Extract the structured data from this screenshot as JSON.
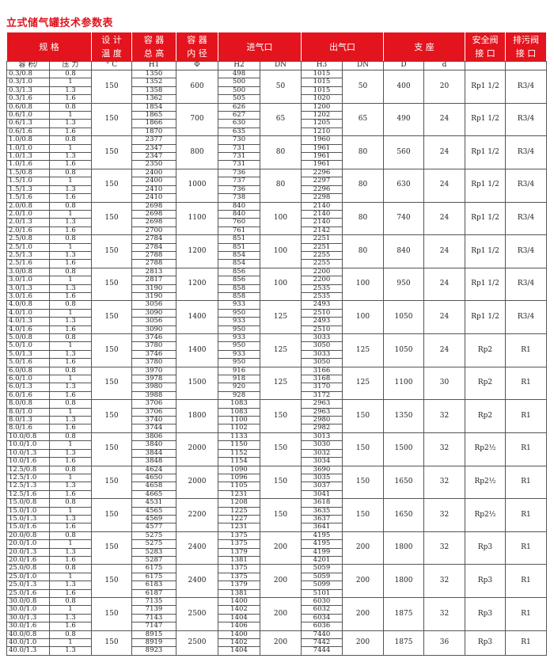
{
  "title": "立式储气罐技术参数表",
  "colors": {
    "header_bg": "#e3141d",
    "title": "#e0141e"
  },
  "headers": {
    "spec": "规 格",
    "temp": "设 计\n温 度",
    "height": "容 器\n总 高",
    "diameter": "容 器\n内 径",
    "inlet": "进气口",
    "outlet": "出气口",
    "support": "支 座",
    "safety": "安全阀\n接 口",
    "drain": "排污阀\n接 口"
  },
  "subheaders": [
    "容 积/",
    "压 力",
    "° C",
    "H1",
    "Φ",
    "H2",
    "DN",
    "H3",
    "DN",
    "D",
    "d",
    "",
    ""
  ],
  "groups": [
    {
      "temp": "150",
      "dia": "600",
      "in_dn": "50",
      "out_dn": "50",
      "D": "400",
      "d": "20",
      "safety": "Rp1 1/2",
      "drain": "R3/4",
      "rows": [
        [
          "0.3/0.8",
          "0.8",
          "1350",
          "498",
          "1015"
        ],
        [
          "0.3/1.0",
          "1",
          "1352",
          "500",
          "1015"
        ],
        [
          "0.3/1.3",
          "1.3",
          "1358",
          "500",
          "1015"
        ],
        [
          "0.3/1.6",
          "1.6",
          "1362",
          "505",
          "1020"
        ]
      ]
    },
    {
      "temp": "150",
      "dia": "700",
      "in_dn": "65",
      "out_dn": "65",
      "D": "490",
      "d": "24",
      "safety": "Rp1 1/2",
      "drain": "R3/4",
      "rows": [
        [
          "0.6/0.8",
          "0.8",
          "1854",
          "626",
          "1200"
        ],
        [
          "0.6/1.0",
          "1",
          "1865",
          "627",
          "1202"
        ],
        [
          "0.6/1.3",
          "1.3",
          "1866",
          "630",
          "1205"
        ],
        [
          "0.6/1.6",
          "1.6",
          "1870",
          "635",
          "1210"
        ]
      ]
    },
    {
      "temp": "150",
      "dia": "800",
      "in_dn": "80",
      "out_dn": "80",
      "D": "560",
      "d": "24",
      "safety": "Rp1 1/2",
      "drain": "R3/4",
      "rows": [
        [
          "1.0/0.8",
          "0.8",
          "2377",
          "730",
          "1960"
        ],
        [
          "1.0/1.0",
          "1",
          "2347",
          "731",
          "1961"
        ],
        [
          "1.0/1.3",
          "1.3",
          "2347",
          "731",
          "1961"
        ],
        [
          "1.0/1.6",
          "1.6",
          "2350",
          "731",
          "1961"
        ]
      ]
    },
    {
      "temp": "150",
      "dia": "1000",
      "in_dn": "80",
      "out_dn": "80",
      "D": "630",
      "d": "24",
      "safety": "Rp1 1/2",
      "drain": "R3/4",
      "rows": [
        [
          "1.5/0.8",
          "0.8",
          "2400",
          "736",
          "2296"
        ],
        [
          "1.5/1.0",
          "1",
          "2400",
          "737",
          "2297"
        ],
        [
          "1.5/1.3",
          "1.3",
          "2410",
          "736",
          "2296"
        ],
        [
          "1.5/1.6",
          "1.6",
          "2410",
          "738",
          "2298"
        ]
      ]
    },
    {
      "temp": "150",
      "dia": "1100",
      "in_dn": "100",
      "out_dn": "80",
      "D": "740",
      "d": "24",
      "safety": "Rp1 1/2",
      "drain": "R3/4",
      "rows": [
        [
          "2.0/0.8",
          "0.8",
          "2698",
          "840",
          "2140"
        ],
        [
          "2.0/1.0",
          "1",
          "2698",
          "840",
          "2140"
        ],
        [
          "2.0/1.3",
          "1.3",
          "2698",
          "760",
          "2140"
        ],
        [
          "2.0/1.6",
          "1.6",
          "2700",
          "761",
          "2142"
        ]
      ]
    },
    {
      "temp": "150",
      "dia": "1200",
      "in_dn": "100",
      "out_dn": "80",
      "D": "840",
      "d": "24",
      "safety": "Rp1 1/2",
      "drain": "R3/4",
      "rows": [
        [
          "2.5/0.8",
          "0.8",
          "2784",
          "851",
          "2251"
        ],
        [
          "2.5/1.0",
          "1",
          "2784",
          "851",
          "2251"
        ],
        [
          "2.5/1.3",
          "1.3",
          "2788",
          "854",
          "2255"
        ],
        [
          "2.5/1.6",
          "1.6",
          "2788",
          "854",
          "2255"
        ]
      ]
    },
    {
      "temp": "150",
      "dia": "1200",
      "in_dn": "100",
      "out_dn": "100",
      "D": "950",
      "d": "24",
      "safety": "Rp1 1/2",
      "drain": "R3/4",
      "rows": [
        [
          "3.0/0.8",
          "0.8",
          "2813",
          "856",
          "2200"
        ],
        [
          "3.0/1.0",
          "1",
          "2817",
          "856",
          "2200"
        ],
        [
          "3.0/1.3",
          "1.3",
          "3190",
          "858",
          "2535"
        ],
        [
          "3.0/1.6",
          "1.6",
          "3190",
          "858",
          "2535"
        ]
      ]
    },
    {
      "temp": "150",
      "dia": "1400",
      "in_dn": "125",
      "out_dn": "100",
      "D": "1050",
      "d": "24",
      "safety": "Rp1 1/2",
      "drain": "R3/4",
      "rows": [
        [
          "4.0/0.8",
          "0.8",
          "3056",
          "933",
          "2493"
        ],
        [
          "4.0/1.0",
          "1",
          "3090",
          "950",
          "2510"
        ],
        [
          "4.0/1.3",
          "1.3",
          "3056",
          "933",
          "2493"
        ],
        [
          "4.0/1.6",
          "1.6",
          "3090",
          "950",
          "2510"
        ]
      ]
    },
    {
      "temp": "150",
      "dia": "1400",
      "in_dn": "125",
      "out_dn": "125",
      "D": "1050",
      "d": "24",
      "safety": "Rp2",
      "drain": "R1",
      "rows": [
        [
          "5.0/0.8",
          "0.8",
          "3746",
          "933",
          "3033"
        ],
        [
          "5.0/1.0",
          "1",
          "3780",
          "950",
          "3050"
        ],
        [
          "5.0/1.3",
          "1.3",
          "3746",
          "933",
          "3033"
        ],
        [
          "5.0/1.6",
          "1.6",
          "3780",
          "950",
          "3050"
        ]
      ]
    },
    {
      "temp": "150",
      "dia": "1500",
      "in_dn": "125",
      "out_dn": "125",
      "D": "1100",
      "d": "30",
      "safety": "Rp2",
      "drain": "R1",
      "rows": [
        [
          "6.0/0.8",
          "0.8",
          "3970",
          "916",
          "3166"
        ],
        [
          "6.0/1.0",
          "1",
          "3978",
          "918",
          "3168"
        ],
        [
          "6.0/1.3",
          "1.3",
          "3980",
          "920",
          "3170"
        ],
        [
          "6.0/1.6",
          "1.6",
          "3988",
          "928",
          "3172"
        ]
      ]
    },
    {
      "temp": "150",
      "dia": "1800",
      "in_dn": "150",
      "out_dn": "150",
      "D": "1350",
      "d": "32",
      "safety": "Rp2",
      "drain": "R1",
      "rows": [
        [
          "8.0/0.8",
          "0.8",
          "3706",
          "1083",
          "2963"
        ],
        [
          "8.0/1.0",
          "1",
          "3706",
          "1083",
          "2963"
        ],
        [
          "8.0/1.3",
          "1.3",
          "3740",
          "1100",
          "2980"
        ],
        [
          "8.0/1.6",
          "1.6",
          "3744",
          "1102",
          "2982"
        ]
      ]
    },
    {
      "temp": "150",
      "dia": "2000",
      "in_dn": "150",
      "out_dn": "150",
      "D": "1500",
      "d": "32",
      "safety": "Rp2½",
      "drain": "R1",
      "rows": [
        [
          "10.0/0.8",
          "0.8",
          "3806",
          "1133",
          "3013"
        ],
        [
          "10.0/1.0",
          "1",
          "3840",
          "1150",
          "3030"
        ],
        [
          "10.0/1.3",
          "1.3",
          "3844",
          "1152",
          "3032"
        ],
        [
          "10.0/1.6",
          "1.6",
          "3848",
          "1154",
          "3034"
        ]
      ]
    },
    {
      "temp": "150",
      "dia": "2000",
      "in_dn": "150",
      "out_dn": "150",
      "D": "1650",
      "d": "32",
      "safety": "Rp2½",
      "drain": "R1",
      "rows": [
        [
          "12.5/0.8",
          "0.8",
          "4624",
          "1090",
          "3690"
        ],
        [
          "12.5/1.0",
          "1",
          "4650",
          "1096",
          "3035"
        ],
        [
          "12.5/1.3",
          "1.3",
          "4658",
          "1105",
          "3037"
        ],
        [
          "12.5/1.6",
          "1.6",
          "4665",
          "1231",
          "3041"
        ]
      ]
    },
    {
      "temp": "150",
      "dia": "2200",
      "in_dn": "150",
      "out_dn": "150",
      "D": "1650",
      "d": "32",
      "safety": "Rp2½",
      "drain": "R1",
      "rows": [
        [
          "15.0/0.8",
          "0.8",
          "4531",
          "1208",
          "3618"
        ],
        [
          "15.0/1.0",
          "1",
          "4565",
          "1225",
          "3635"
        ],
        [
          "15.0/1.3",
          "1.3",
          "4569",
          "1227",
          "3637"
        ],
        [
          "15.0/1.6",
          "1.6",
          "4577",
          "1231",
          "3641"
        ]
      ]
    },
    {
      "temp": "150",
      "dia": "2400",
      "in_dn": "200",
      "out_dn": "200",
      "D": "1800",
      "d": "32",
      "safety": "Rp3",
      "drain": "R1",
      "rows": [
        [
          "20.0/0.8",
          "0.8",
          "5275",
          "1375",
          "4195"
        ],
        [
          "20.0/1.0",
          "1",
          "5275",
          "1375",
          "4195"
        ],
        [
          "20.0/1.3",
          "1.3",
          "5283",
          "1379",
          "4199"
        ],
        [
          "20.0/1.6",
          "1.6",
          "5287",
          "1381",
          "4201"
        ]
      ]
    },
    {
      "temp": "150",
      "dia": "2400",
      "in_dn": "200",
      "out_dn": "200",
      "D": "1800",
      "d": "32",
      "safety": "Rp3",
      "drain": "R1",
      "rows": [
        [
          "25.0/0.8",
          "0.8",
          "6175",
          "1375",
          "5059"
        ],
        [
          "25.0/1.0",
          "1",
          "6175",
          "1375",
          "5059"
        ],
        [
          "25.0/1.3",
          "1.3",
          "6183",
          "1379",
          "5099"
        ],
        [
          "25.0/1.6",
          "1.6",
          "6187",
          "1381",
          "5101"
        ]
      ]
    },
    {
      "temp": "150",
      "dia": "2500",
      "in_dn": "200",
      "out_dn": "200",
      "D": "1875",
      "d": "32",
      "safety": "Rp3",
      "drain": "R1",
      "rows": [
        [
          "30.0/0.8",
          "0.8",
          "7135",
          "1400",
          "6030"
        ],
        [
          "30.0/1.0",
          "1",
          "7139",
          "1402",
          "6032"
        ],
        [
          "30.0/1.3",
          "1.3",
          "7143",
          "1404",
          "6034"
        ],
        [
          "30.0/1.6",
          "1.6",
          "7147",
          "1406",
          "6036"
        ]
      ]
    },
    {
      "temp": "150",
      "dia": "2500",
      "in_dn": "200",
      "out_dn": "200",
      "D": "1875",
      "d": "36",
      "safety": "Rp3",
      "drain": "R1",
      "rows": [
        [
          "40.0/0.8",
          "0.8",
          "8915",
          "1400",
          "7440"
        ],
        [
          "40.0/1.0",
          "1",
          "8919",
          "1402",
          "7442"
        ],
        [
          "40.0/1.3",
          "1.3",
          "8923",
          "1404",
          "7444"
        ]
      ]
    }
  ]
}
